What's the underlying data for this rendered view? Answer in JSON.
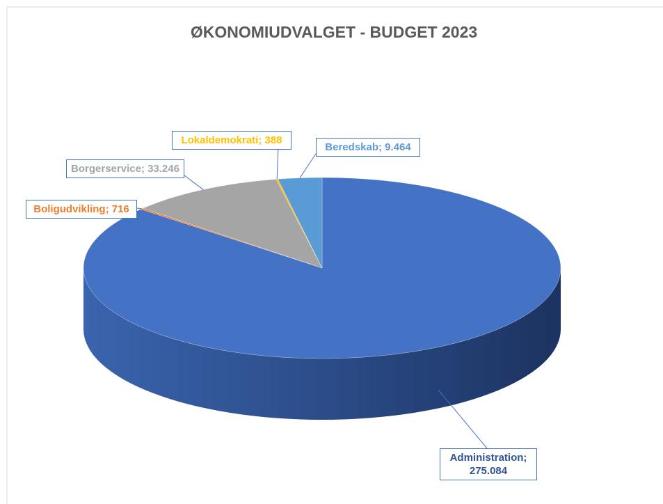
{
  "chart_data": {
    "type": "pie",
    "title": "ØKONOMIUDVALGET - BUDGET 2023",
    "values": [
      275084,
      716,
      33246,
      388,
      9464
    ],
    "value_labels": [
      "Administration; 275.084",
      "Boligudvikling; 716",
      "Borgerservice; 33.246",
      "Lokaldemokrati; 388",
      "Beredskab; 9.464"
    ],
    "colors": [
      "#4472c4",
      "#ed7d31",
      "#a5a5a5",
      "#ffc000",
      "#5b9bd5"
    ],
    "start_angle": 0,
    "direction": "clockwise",
    "three_d": true
  }
}
